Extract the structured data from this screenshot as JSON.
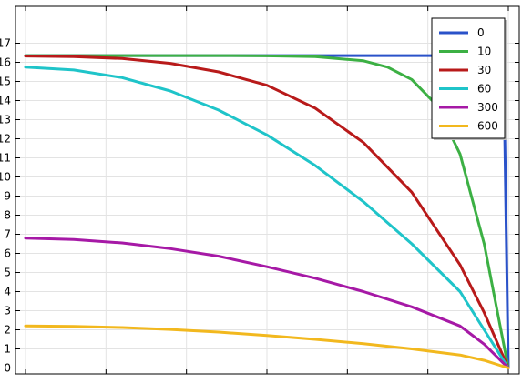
{
  "chart_data": {
    "type": "line",
    "title": "",
    "xlabel": "",
    "ylabel": "",
    "ylim": [
      0,
      18.5
    ],
    "xlim": [
      0,
      1.0
    ],
    "grid": true,
    "legend_position": "top-right",
    "yticks": [
      0,
      1,
      2,
      3,
      4,
      5,
      6,
      7,
      8,
      9,
      10,
      11,
      12,
      13,
      14,
      15,
      16,
      17
    ],
    "series": [
      {
        "name": "0",
        "color": "#2a52c9",
        "x": [
          0,
          0.1,
          0.2,
          0.3,
          0.4,
          0.5,
          0.6,
          0.7,
          0.8,
          0.9,
          0.95,
          0.99,
          1.0
        ],
        "y": [
          16.35,
          16.35,
          16.35,
          16.35,
          16.35,
          16.35,
          16.35,
          16.35,
          16.35,
          16.35,
          16.35,
          16.35,
          0
        ]
      },
      {
        "name": "10",
        "color": "#3cb044",
        "x": [
          0,
          0.1,
          0.2,
          0.3,
          0.4,
          0.5,
          0.6,
          0.7,
          0.75,
          0.8,
          0.85,
          0.9,
          0.95,
          1.0
        ],
        "y": [
          16.35,
          16.35,
          16.35,
          16.35,
          16.35,
          16.34,
          16.3,
          16.08,
          15.75,
          15.1,
          13.8,
          11.2,
          6.5,
          0
        ]
      },
      {
        "name": "30",
        "color": "#b81a1a",
        "x": [
          0,
          0.1,
          0.2,
          0.3,
          0.4,
          0.5,
          0.6,
          0.7,
          0.8,
          0.9,
          0.95,
          1.0
        ],
        "y": [
          16.33,
          16.3,
          16.2,
          15.95,
          15.5,
          14.8,
          13.6,
          11.8,
          9.2,
          5.4,
          2.9,
          0
        ]
      },
      {
        "name": "60",
        "color": "#1fc4c9",
        "x": [
          0,
          0.1,
          0.2,
          0.3,
          0.4,
          0.5,
          0.6,
          0.7,
          0.8,
          0.9,
          0.95,
          1.0
        ],
        "y": [
          15.75,
          15.6,
          15.2,
          14.5,
          13.5,
          12.2,
          10.6,
          8.7,
          6.5,
          4.0,
          2.0,
          0
        ]
      },
      {
        "name": "300",
        "color": "#a619a6",
        "x": [
          0,
          0.1,
          0.2,
          0.3,
          0.4,
          0.5,
          0.6,
          0.7,
          0.8,
          0.9,
          0.95,
          1.0
        ],
        "y": [
          6.8,
          6.73,
          6.55,
          6.25,
          5.85,
          5.3,
          4.7,
          4.0,
          3.2,
          2.2,
          1.25,
          0
        ]
      },
      {
        "name": "600",
        "color": "#f2b81e",
        "x": [
          0,
          0.1,
          0.2,
          0.3,
          0.4,
          0.5,
          0.6,
          0.7,
          0.8,
          0.9,
          0.95,
          1.0
        ],
        "y": [
          2.2,
          2.18,
          2.12,
          2.02,
          1.88,
          1.7,
          1.5,
          1.27,
          1.0,
          0.68,
          0.4,
          0
        ]
      }
    ]
  }
}
